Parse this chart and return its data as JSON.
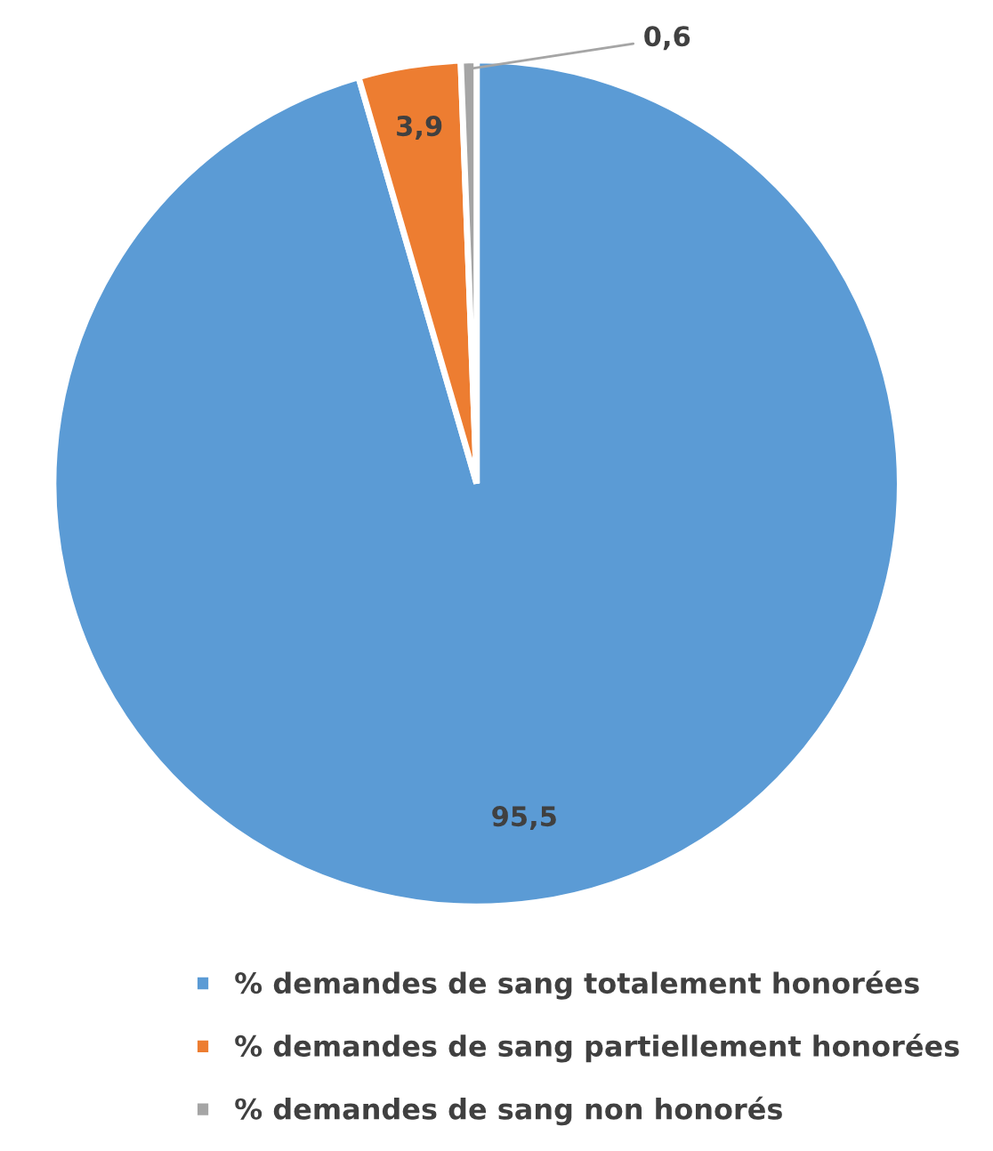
{
  "chart_data": {
    "type": "pie",
    "categories": [
      "% demandes de sang totalement honorées",
      "% demandes de sang partiellement honorées",
      "% demandes de sang non honorés"
    ],
    "values": [
      95.5,
      3.9,
      0.6
    ],
    "colors": [
      "#5b9bd5",
      "#ed7d31",
      "#a5a5a5"
    ],
    "value_labels": [
      "95,5",
      "3,9",
      "0,6"
    ],
    "legend": "bottom"
  }
}
